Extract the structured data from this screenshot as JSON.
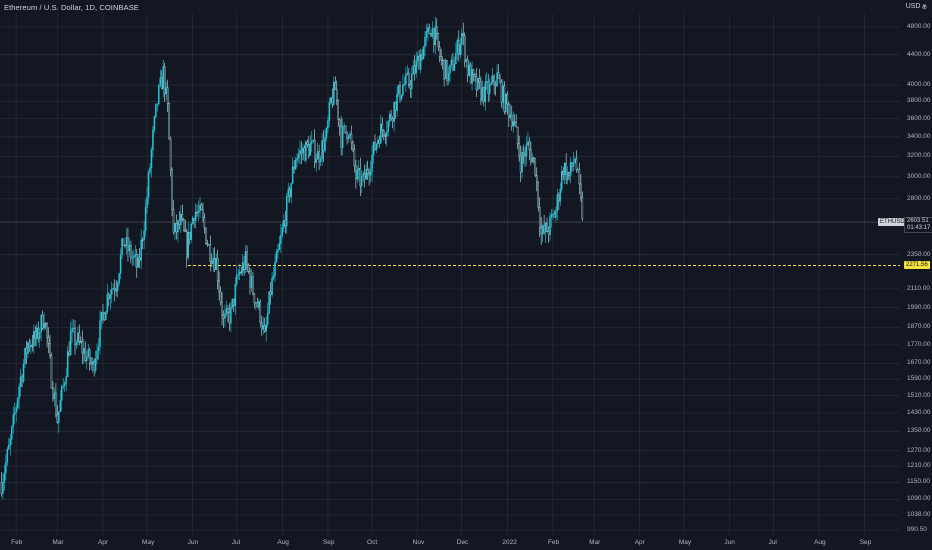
{
  "header": {
    "title": "Ethereum / U.S. Dollar, 1D, COINBASE",
    "currency": "USD",
    "currency_caret": "˅",
    "settings_glyph": "⊘"
  },
  "colors": {
    "background": "#131722",
    "grid": "#2a2e39",
    "candle": "#26c6da",
    "candle_light": "#b2ebf2",
    "level_line": "#f5e13b",
    "axis_text": "#b2b5be"
  },
  "tags": {
    "symbol": "ETHUSD",
    "last_price": "2603.51",
    "countdown": "01:43:17",
    "level_price": "2271.56"
  },
  "chart_data": {
    "type": "candlestick",
    "title": "Ethereum / U.S. Dollar, 1D, COINBASE",
    "y_scale": "log",
    "ylim": [
      975,
      5000
    ],
    "y_ticks": [
      "4800.00",
      "4400.00",
      "4000.00",
      "3800.00",
      "3600.00",
      "3400.00",
      "3200.00",
      "3000.00",
      "2800.00",
      "2600.00",
      "2350.00",
      "2110.00",
      "1990.00",
      "1870.00",
      "1770.00",
      "1670.00",
      "1590.00",
      "1510.00",
      "1430.00",
      "1350.00",
      "1270.00",
      "1210.00",
      "1150.00",
      "1090.00",
      "1038.00",
      "990.50"
    ],
    "x_ticks": [
      "Feb",
      "Mar",
      "Apr",
      "May",
      "Jun",
      "Jul",
      "Aug",
      "Sep",
      "Oct",
      "Nov",
      "Dec",
      "2022",
      "Feb",
      "Mar",
      "Apr",
      "May",
      "Jun",
      "Jul",
      "Aug",
      "Sep"
    ],
    "xlim": [
      "2021-01-21",
      "2022-09-25"
    ],
    "horizontal_level": 2271.56,
    "last_price": 2603.51,
    "closes": [
      [
        "2021-01-22",
        1150
      ],
      [
        "2021-01-28",
        1300
      ],
      [
        "2021-02-03",
        1560
      ],
      [
        "2021-02-09",
        1780
      ],
      [
        "2021-02-15",
        1810
      ],
      [
        "2021-02-20",
        1950
      ],
      [
        "2021-02-25",
        1600
      ],
      [
        "2021-03-01",
        1400
      ],
      [
        "2021-03-05",
        1550
      ],
      [
        "2021-03-10",
        1820
      ],
      [
        "2021-03-15",
        1790
      ],
      [
        "2021-03-20",
        1720
      ],
      [
        "2021-03-25",
        1650
      ],
      [
        "2021-03-31",
        1900
      ],
      [
        "2021-04-05",
        2100
      ],
      [
        "2021-04-10",
        2150
      ],
      [
        "2021-04-15",
        2450
      ],
      [
        "2021-04-20",
        2350
      ],
      [
        "2021-04-25",
        2250
      ],
      [
        "2021-04-30",
        2700
      ],
      [
        "2021-05-05",
        3400
      ],
      [
        "2021-05-08",
        3800
      ],
      [
        "2021-05-12",
        4150
      ],
      [
        "2021-05-15",
        3700
      ],
      [
        "2021-05-19",
        2500
      ],
      [
        "2021-05-24",
        2600
      ],
      [
        "2021-05-28",
        2400
      ],
      [
        "2021-06-02",
        2700
      ],
      [
        "2021-06-07",
        2650
      ],
      [
        "2021-06-12",
        2400
      ],
      [
        "2021-06-17",
        2300
      ],
      [
        "2021-06-22",
        1900
      ],
      [
        "2021-06-27",
        1950
      ],
      [
        "2021-07-02",
        2200
      ],
      [
        "2021-07-07",
        2300
      ],
      [
        "2021-07-12",
        2100
      ],
      [
        "2021-07-17",
        1950
      ],
      [
        "2021-07-20",
        1800
      ],
      [
        "2021-07-24",
        2100
      ],
      [
        "2021-07-30",
        2400
      ],
      [
        "2021-08-05",
        2800
      ],
      [
        "2021-08-10",
        3200
      ],
      [
        "2021-08-15",
        3250
      ],
      [
        "2021-08-20",
        3300
      ],
      [
        "2021-08-25",
        3200
      ],
      [
        "2021-08-31",
        3400
      ],
      [
        "2021-09-03",
        3800
      ],
      [
        "2021-09-06",
        3950
      ],
      [
        "2021-09-10",
        3400
      ],
      [
        "2021-09-15",
        3500
      ],
      [
        "2021-09-20",
        3000
      ],
      [
        "2021-09-25",
        2950
      ],
      [
        "2021-10-01",
        3200
      ],
      [
        "2021-10-06",
        3450
      ],
      [
        "2021-10-12",
        3550
      ],
      [
        "2021-10-17",
        3800
      ],
      [
        "2021-10-22",
        4000
      ],
      [
        "2021-10-27",
        4050
      ],
      [
        "2021-11-01",
        4300
      ],
      [
        "2021-11-05",
        4500
      ],
      [
        "2021-11-10",
        4800
      ],
      [
        "2021-11-13",
        4650
      ],
      [
        "2021-11-17",
        4300
      ],
      [
        "2021-11-22",
        4100
      ],
      [
        "2021-11-27",
        4400
      ],
      [
        "2021-12-01",
        4700
      ],
      [
        "2021-12-05",
        4200
      ],
      [
        "2021-12-10",
        4000
      ],
      [
        "2021-12-15",
        3900
      ],
      [
        "2021-12-20",
        3950
      ],
      [
        "2021-12-25",
        4100
      ],
      [
        "2021-12-30",
        3800
      ],
      [
        "2022-01-05",
        3600
      ],
      [
        "2022-01-10",
        3150
      ],
      [
        "2022-01-15",
        3300
      ],
      [
        "2022-01-20",
        3100
      ],
      [
        "2022-01-24",
        2500
      ],
      [
        "2022-01-29",
        2550
      ],
      [
        "2022-02-03",
        2700
      ],
      [
        "2022-02-08",
        3100
      ],
      [
        "2022-02-12",
        3000
      ],
      [
        "2022-02-16",
        3200
      ],
      [
        "2022-02-20",
        2750
      ],
      [
        "2022-02-22",
        2603.51
      ]
    ]
  }
}
